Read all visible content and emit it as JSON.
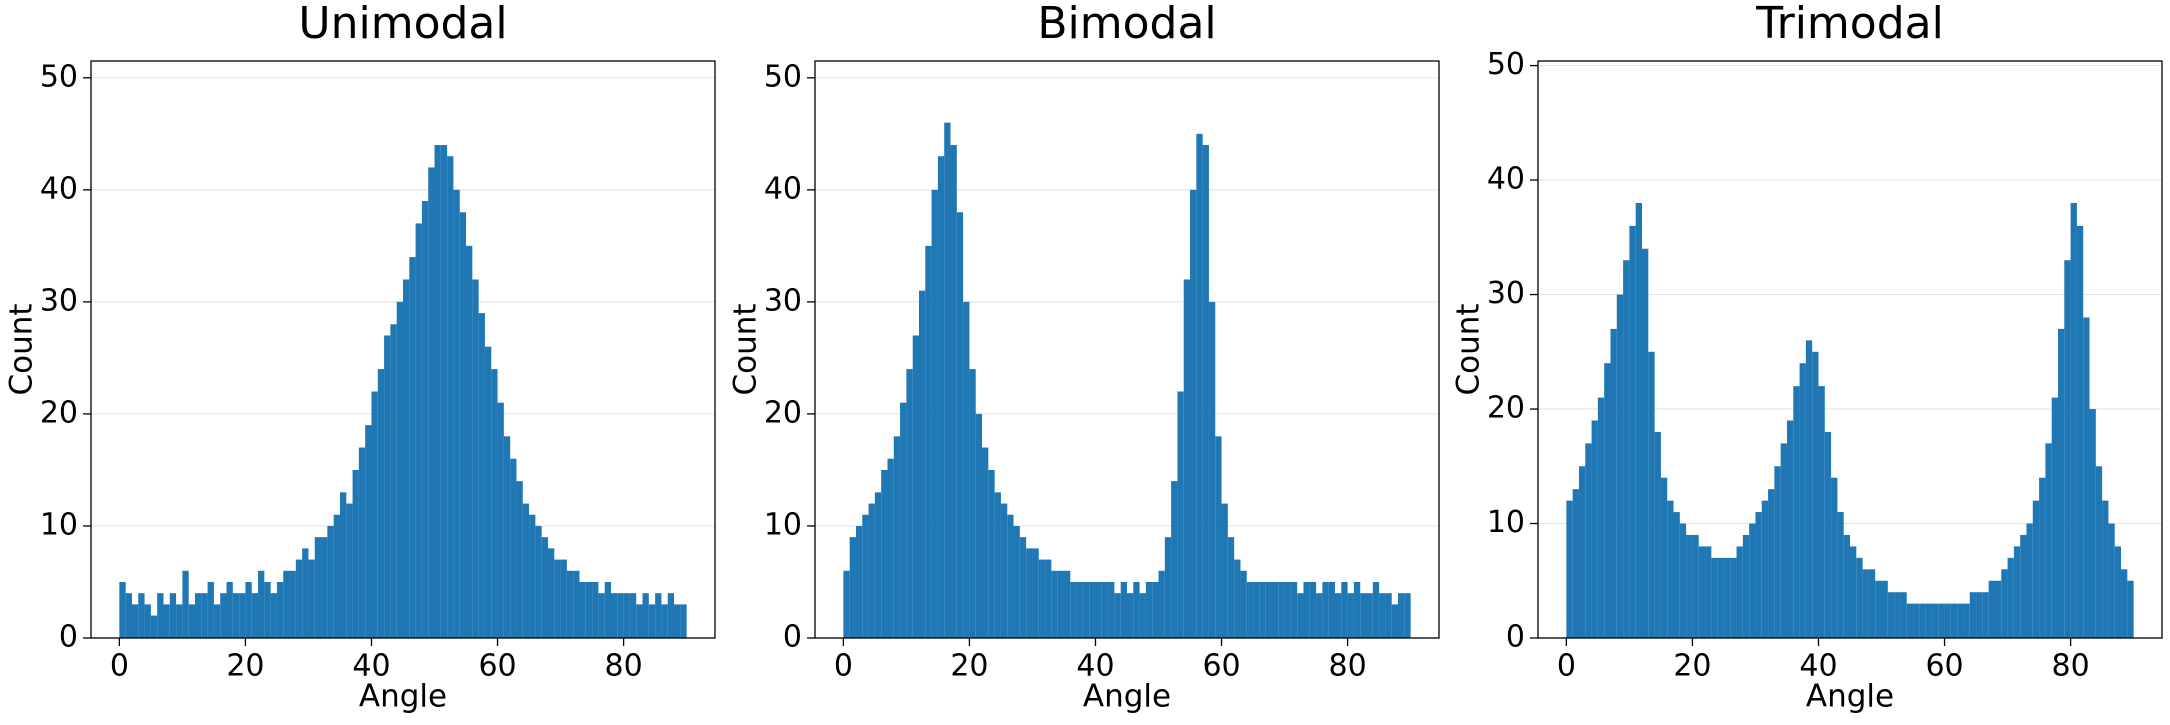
{
  "chart_data": [
    {
      "type": "histogram",
      "title": "Unimodal",
      "xlabel": "Angle",
      "ylabel": "Count",
      "color": "#1f77b4",
      "grid": true,
      "xlim": [
        -4.5,
        94.5
      ],
      "ylim": [
        0,
        51.5
      ],
      "xticks": [
        0,
        20,
        40,
        60,
        80
      ],
      "yticks": [
        0,
        10,
        20,
        30,
        40,
        50
      ],
      "bins": [
        0,
        1,
        2,
        3,
        4,
        5,
        6,
        7,
        8,
        9,
        10,
        11,
        12,
        13,
        14,
        15,
        16,
        17,
        18,
        19,
        20,
        21,
        22,
        23,
        24,
        25,
        26,
        27,
        28,
        29,
        30,
        31,
        32,
        33,
        34,
        35,
        36,
        37,
        38,
        39,
        40,
        41,
        42,
        43,
        44,
        45,
        46,
        47,
        48,
        49,
        50,
        51,
        52,
        53,
        54,
        55,
        56,
        57,
        58,
        59,
        60,
        61,
        62,
        63,
        64,
        65,
        66,
        67,
        68,
        69,
        70,
        71,
        72,
        73,
        74,
        75,
        76,
        77,
        78,
        79,
        80,
        81,
        82,
        83,
        84,
        85,
        86,
        87,
        88,
        89,
        90
      ],
      "values": [
        5,
        4,
        3,
        4,
        3,
        2,
        4,
        3,
        4,
        3,
        6,
        3,
        4,
        4,
        5,
        3,
        4,
        5,
        4,
        4,
        5,
        4,
        6,
        5,
        4,
        5,
        6,
        6,
        7,
        8,
        7,
        9,
        9,
        10,
        11,
        13,
        12,
        15,
        17,
        19,
        22,
        24,
        27,
        28,
        30,
        32,
        34,
        37,
        39,
        42,
        44,
        44,
        43,
        40,
        38,
        35,
        32,
        29,
        26,
        24,
        21,
        18,
        16,
        14,
        12,
        11,
        10,
        9,
        8,
        7,
        7,
        6,
        6,
        5,
        5,
        5,
        4,
        5,
        4,
        4,
        4,
        4,
        3,
        4,
        3,
        4,
        3,
        4,
        3,
        3
      ]
    },
    {
      "type": "histogram",
      "title": "Bimodal",
      "xlabel": "Angle",
      "ylabel": "Count",
      "color": "#1f77b4",
      "grid": true,
      "xlim": [
        -4.5,
        94.5
      ],
      "ylim": [
        0,
        51.5
      ],
      "xticks": [
        0,
        20,
        40,
        60,
        80
      ],
      "yticks": [
        0,
        10,
        20,
        30,
        40,
        50
      ],
      "bins": [
        0,
        1,
        2,
        3,
        4,
        5,
        6,
        7,
        8,
        9,
        10,
        11,
        12,
        13,
        14,
        15,
        16,
        17,
        18,
        19,
        20,
        21,
        22,
        23,
        24,
        25,
        26,
        27,
        28,
        29,
        30,
        31,
        32,
        33,
        34,
        35,
        36,
        37,
        38,
        39,
        40,
        41,
        42,
        43,
        44,
        45,
        46,
        47,
        48,
        49,
        50,
        51,
        52,
        53,
        54,
        55,
        56,
        57,
        58,
        59,
        60,
        61,
        62,
        63,
        64,
        65,
        66,
        67,
        68,
        69,
        70,
        71,
        72,
        73,
        74,
        75,
        76,
        77,
        78,
        79,
        80,
        81,
        82,
        83,
        84,
        85,
        86,
        87,
        88,
        89,
        90
      ],
      "values": [
        6,
        9,
        10,
        11,
        12,
        13,
        15,
        16,
        18,
        21,
        24,
        27,
        31,
        35,
        40,
        43,
        46,
        44,
        38,
        30,
        24,
        20,
        17,
        15,
        13,
        12,
        11,
        10,
        9,
        8,
        8,
        7,
        7,
        6,
        6,
        6,
        5,
        5,
        5,
        5,
        5,
        5,
        5,
        4,
        5,
        4,
        5,
        4,
        5,
        5,
        6,
        9,
        14,
        22,
        32,
        40,
        45,
        44,
        30,
        18,
        12,
        9,
        7,
        6,
        5,
        5,
        5,
        5,
        5,
        5,
        5,
        5,
        4,
        5,
        5,
        4,
        5,
        5,
        4,
        5,
        4,
        5,
        4,
        4,
        5,
        4,
        4,
        3,
        4,
        4
      ]
    },
    {
      "type": "histogram",
      "title": "Trimodal",
      "xlabel": "Angle",
      "ylabel": "Count",
      "color": "#1f77b4",
      "grid": true,
      "xlim": [
        -4.5,
        94.5
      ],
      "ylim": [
        0,
        50.4
      ],
      "xticks": [
        0,
        20,
        40,
        60,
        80
      ],
      "yticks": [
        0,
        10,
        20,
        30,
        40,
        50
      ],
      "bins": [
        0,
        1,
        2,
        3,
        4,
        5,
        6,
        7,
        8,
        9,
        10,
        11,
        12,
        13,
        14,
        15,
        16,
        17,
        18,
        19,
        20,
        21,
        22,
        23,
        24,
        25,
        26,
        27,
        28,
        29,
        30,
        31,
        32,
        33,
        34,
        35,
        36,
        37,
        38,
        39,
        40,
        41,
        42,
        43,
        44,
        45,
        46,
        47,
        48,
        49,
        50,
        51,
        52,
        53,
        54,
        55,
        56,
        57,
        58,
        59,
        60,
        61,
        62,
        63,
        64,
        65,
        66,
        67,
        68,
        69,
        70,
        71,
        72,
        73,
        74,
        75,
        76,
        77,
        78,
        79,
        80,
        81,
        82,
        83,
        84,
        85,
        86,
        87,
        88,
        89,
        90
      ],
      "values": [
        12,
        13,
        15,
        17,
        19,
        21,
        24,
        27,
        30,
        33,
        36,
        38,
        34,
        25,
        18,
        14,
        12,
        11,
        10,
        9,
        9,
        8,
        8,
        7,
        7,
        7,
        7,
        8,
        9,
        10,
        11,
        12,
        13,
        15,
        17,
        19,
        22,
        24,
        26,
        25,
        22,
        18,
        14,
        11,
        9,
        8,
        7,
        6,
        6,
        5,
        5,
        4,
        4,
        4,
        3,
        3,
        3,
        3,
        3,
        3,
        3,
        3,
        3,
        3,
        4,
        4,
        4,
        5,
        5,
        6,
        7,
        8,
        9,
        10,
        12,
        14,
        17,
        21,
        27,
        33,
        38,
        36,
        28,
        20,
        15,
        12,
        10,
        8,
        6,
        5
      ]
    }
  ]
}
